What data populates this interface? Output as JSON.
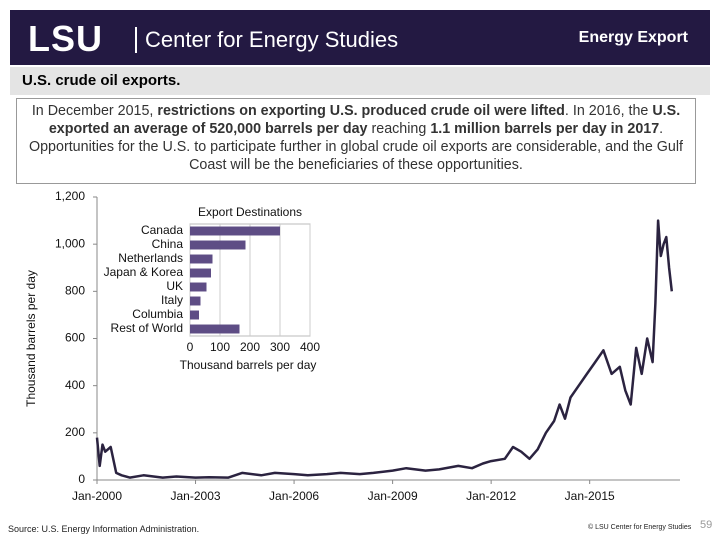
{
  "header": {
    "logo": "LSU",
    "org": "Center for Energy Studies",
    "section": "Energy Export"
  },
  "subtitle": "U.S. crude oil exports.",
  "paragraph": [
    {
      "text": "In December 2015, ",
      "bold": false
    },
    {
      "text": "restrictions on exporting U.S. produced crude oil were lifted",
      "bold": true
    },
    {
      "text": ".  In 2016, the ",
      "bold": false
    },
    {
      "text": "U.S. exported an average of 520,000 barrels per day",
      "bold": true
    },
    {
      "text": " reaching ",
      "bold": false
    },
    {
      "text": "1.1 million barrels per day in 2017",
      "bold": true
    },
    {
      "text": ".  Opportunities for the U.S. to participate further in global crude oil exports are considerable, and the Gulf Coast will be the beneficiaries of these opportunities.",
      "bold": false
    }
  ],
  "footer": {
    "source": "Source:  U.S. Energy Information Administration.",
    "copyright": "© LSU Center for Energy Studies",
    "page": "59"
  },
  "chart_data": [
    {
      "type": "line",
      "ylabel": "Thousand barrels per day",
      "color": "#2b2340",
      "x": [
        "2000-01",
        "2000-02",
        "2000-03",
        "2000-04",
        "2000-06",
        "2000-08",
        "2000-10",
        "2001-01",
        "2001-06",
        "2002-01",
        "2002-06",
        "2003-01",
        "2003-06",
        "2004-01",
        "2004-06",
        "2005-01",
        "2005-06",
        "2006-01",
        "2006-06",
        "2007-01",
        "2007-06",
        "2008-01",
        "2008-06",
        "2009-01",
        "2009-06",
        "2010-01",
        "2010-06",
        "2011-01",
        "2011-06",
        "2011-10",
        "2012-01",
        "2012-06",
        "2012-09",
        "2012-12",
        "2013-03",
        "2013-06",
        "2013-09",
        "2013-12",
        "2014-02",
        "2014-04",
        "2014-06",
        "2014-09",
        "2014-12",
        "2015-03",
        "2015-06",
        "2015-09",
        "2015-12",
        "2016-02",
        "2016-04",
        "2016-06",
        "2016-08",
        "2016-10",
        "2016-12",
        "2017-01",
        "2017-02",
        "2017-03",
        "2017-04",
        "2017-05",
        "2017-06",
        "2017-07"
      ],
      "values": [
        180,
        60,
        150,
        120,
        140,
        30,
        20,
        10,
        20,
        10,
        15,
        10,
        12,
        10,
        30,
        20,
        30,
        25,
        20,
        25,
        30,
        25,
        30,
        40,
        50,
        40,
        45,
        60,
        50,
        70,
        80,
        90,
        140,
        120,
        90,
        130,
        200,
        250,
        320,
        260,
        350,
        400,
        450,
        500,
        550,
        450,
        480,
        380,
        320,
        560,
        450,
        600,
        500,
        750,
        1100,
        950,
        1000,
        1030,
        900,
        800
      ],
      "xlim": [
        "2000-01",
        "2017-10"
      ],
      "xticks": [
        {
          "value": "2000-01",
          "label": "Jan-2000"
        },
        {
          "value": "2003-01",
          "label": "Jan-2003"
        },
        {
          "value": "2006-01",
          "label": "Jan-2006"
        },
        {
          "value": "2009-01",
          "label": "Jan-2009"
        },
        {
          "value": "2012-01",
          "label": "Jan-2012"
        },
        {
          "value": "2015-01",
          "label": "Jan-2015"
        }
      ],
      "ylim": [
        0,
        1200
      ],
      "yticks": [
        0,
        200,
        400,
        600,
        800,
        {
          "value": 1000,
          "label": "1,000"
        },
        {
          "value": 1200,
          "label": "1,200"
        }
      ],
      "grid": false
    },
    {
      "type": "bar",
      "orientation": "horizontal",
      "title": "Export Destinations",
      "xlabel": "Thousand barrels per day",
      "color": "#5e4d85",
      "categories": [
        "Canada",
        "China",
        "Netherlands",
        "Japan & Korea",
        "UK",
        "Italy",
        "Columbia",
        "Rest of World"
      ],
      "values": [
        300,
        185,
        75,
        70,
        55,
        35,
        30,
        165
      ],
      "xlim": [
        0,
        400
      ],
      "xticks": [
        0,
        100,
        200,
        300,
        400
      ],
      "grid": true
    }
  ]
}
